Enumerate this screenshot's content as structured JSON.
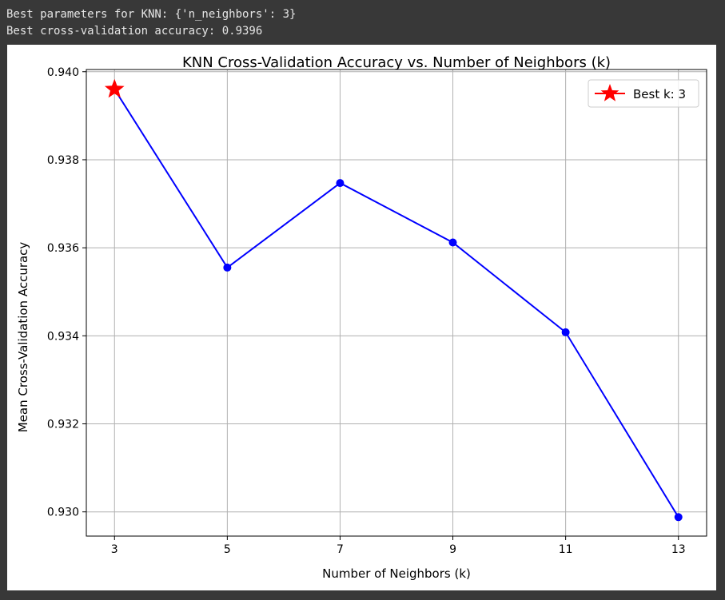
{
  "console": {
    "line1": "Best parameters for KNN: {'n_neighbors': 3}",
    "line2": "Best cross-validation accuracy: 0.9396"
  },
  "chart_data": {
    "type": "line",
    "title": "KNN Cross-Validation Accuracy vs. Number of Neighbors (k)",
    "xlabel": "Number of Neighbors (k)",
    "ylabel": "Mean Cross-Validation Accuracy",
    "x": [
      3,
      5,
      7,
      9,
      11,
      13
    ],
    "y": [
      0.9396,
      0.93555,
      0.93747,
      0.93612,
      0.93408,
      0.92988
    ],
    "xticks": [
      3,
      5,
      7,
      9,
      11,
      13
    ],
    "yticks": [
      0.93,
      0.932,
      0.934,
      0.936,
      0.938,
      0.94
    ],
    "xlim": [
      2.5,
      13.5
    ],
    "ylim": [
      0.92945,
      0.94005
    ],
    "grid": true,
    "line_color": "#0000ff",
    "best_marker": {
      "x": 3,
      "y": 0.9396,
      "label": "Best k: 3",
      "color": "#ff0000"
    },
    "legend": {
      "position": "top-right",
      "entries": [
        "Best k: 3"
      ]
    }
  }
}
